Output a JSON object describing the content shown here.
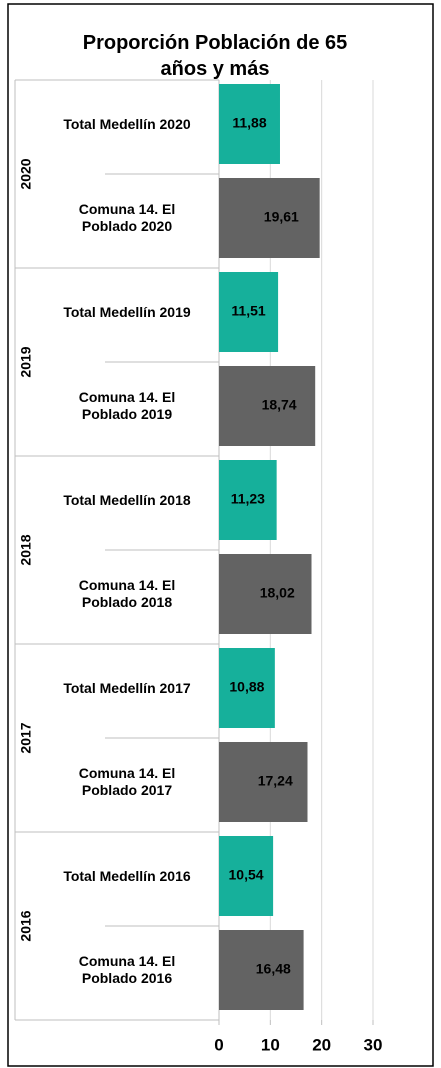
{
  "chart_data": {
    "type": "bar",
    "orientation": "horizontal",
    "title": "Proporción Población de 65 años y más",
    "categories": [
      "Total Medellín 2020",
      "Comuna 14. El Poblado 2020",
      "Total Medellín 2019",
      "Comuna 14. El Poblado 2019",
      "Total Medellín 2018",
      "Comuna 14. El Poblado 2018",
      "Total Medellín 2017",
      "Comuna 14. El Poblado 2017",
      "Total Medellín 2016",
      "Comuna 14. El Poblado 2016"
    ],
    "groups": [
      "2020",
      "2019",
      "2018",
      "2017",
      "2016"
    ],
    "values": [
      11.88,
      19.61,
      11.51,
      18.74,
      11.23,
      18.02,
      10.88,
      17.24,
      10.54,
      16.48
    ],
    "value_labels": [
      "11,88",
      "19,61",
      "11,51",
      "18,74",
      "11,23",
      "18,02",
      "10,88",
      "17,24",
      "10,54",
      "16,48"
    ],
    "colors": [
      "#16b09b",
      "#636363",
      "#16b09b",
      "#636363",
      "#16b09b",
      "#636363",
      "#16b09b",
      "#636363",
      "#16b09b",
      "#636363"
    ],
    "xlim": [
      0,
      30
    ],
    "xticks": [
      0,
      10,
      20,
      30
    ],
    "grid": true
  }
}
